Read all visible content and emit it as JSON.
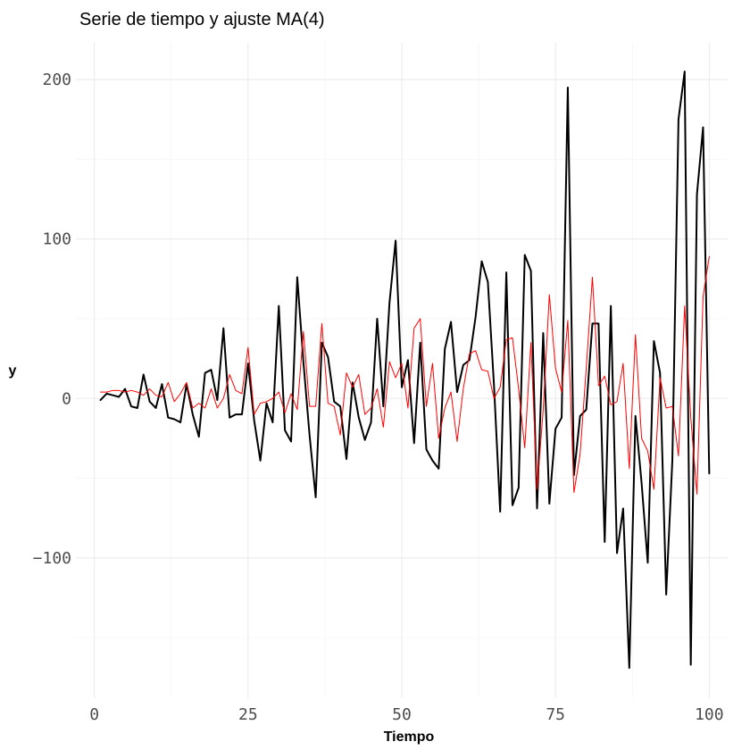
{
  "chart_data": {
    "type": "line",
    "title": "Serie de tiempo y ajuste MA(4)",
    "xlabel": "Tiempo",
    "ylabel": "y",
    "xlim": [
      -3,
      103
    ],
    "ylim": [
      -188,
      223
    ],
    "x_ticks": [
      0,
      25,
      50,
      75,
      100
    ],
    "y_ticks": [
      -100,
      0,
      100,
      200
    ],
    "x_tick_labels": [
      "0",
      "25",
      "50",
      "75",
      "100"
    ],
    "y_tick_labels": [
      "-100",
      "0",
      "100",
      "200"
    ],
    "grid": true,
    "legend": "none",
    "x": [
      1,
      2,
      3,
      4,
      5,
      6,
      7,
      8,
      9,
      10,
      11,
      12,
      13,
      14,
      15,
      16,
      17,
      18,
      19,
      20,
      21,
      22,
      23,
      24,
      25,
      26,
      27,
      28,
      29,
      30,
      31,
      32,
      33,
      34,
      35,
      36,
      37,
      38,
      39,
      40,
      41,
      42,
      43,
      44,
      45,
      46,
      47,
      48,
      49,
      50,
      51,
      52,
      53,
      54,
      55,
      56,
      57,
      58,
      59,
      60,
      61,
      62,
      63,
      64,
      65,
      66,
      67,
      68,
      69,
      70,
      71,
      72,
      73,
      74,
      75,
      76,
      77,
      78,
      79,
      80,
      81,
      82,
      83,
      84,
      85,
      86,
      87,
      88,
      89,
      90,
      91,
      92,
      93,
      94,
      95,
      96,
      97,
      98,
      99,
      100
    ],
    "series": [
      {
        "color": "#000000",
        "width": 2,
        "values": [
          -1,
          3,
          2,
          1,
          6,
          -5,
          -6,
          15,
          -2,
          -6,
          9,
          -12,
          -13,
          -15,
          9,
          -10,
          -24,
          16,
          18,
          -1,
          44,
          -12,
          -10,
          -10,
          22,
          -14,
          -39,
          -3,
          -15,
          58,
          -20,
          -27,
          76,
          23,
          -23,
          -62,
          35,
          26,
          -2,
          -5,
          -38,
          10,
          -12,
          -26,
          -15,
          50,
          -5,
          60,
          99,
          7,
          24,
          -28,
          35,
          -32,
          -39,
          -44,
          31,
          48,
          4,
          21,
          24,
          51,
          86,
          73,
          8,
          -71,
          79,
          -67,
          -56,
          90,
          80,
          -69,
          41,
          -66,
          -19,
          -12,
          195,
          -48,
          -11,
          -7,
          47,
          47,
          -90,
          58,
          -97,
          -69,
          -169,
          -11,
          -53,
          -103,
          36,
          16,
          -123,
          -39,
          175,
          205,
          -167,
          128,
          170,
          -47
        ]
      },
      {
        "color": "#ff0000",
        "width": 1,
        "values": [
          4,
          4,
          5,
          5,
          4,
          5,
          4,
          2,
          6,
          2,
          1,
          10,
          -2,
          3,
          10,
          -6,
          -3,
          -6,
          6,
          -6,
          0,
          15,
          5,
          3,
          32,
          -10,
          -3,
          -2,
          0,
          4,
          -9,
          3,
          -7,
          42,
          -5,
          -5,
          47,
          -3,
          -5,
          -23,
          16,
          7,
          15,
          -10,
          -6,
          6,
          -18,
          23,
          13,
          22,
          -6,
          44,
          50,
          -5,
          22,
          -25,
          -6,
          4,
          -27,
          6,
          28,
          30,
          18,
          17,
          0,
          7,
          37,
          38,
          6,
          -31,
          35,
          -57,
          -7,
          65,
          19,
          4,
          49,
          -59,
          -35,
          19,
          76,
          8,
          14,
          -4,
          -2,
          22,
          -44,
          40,
          -25,
          -33,
          -57,
          13,
          -6,
          -5,
          -36,
          58,
          -12,
          -60,
          64,
          89
        ]
      }
    ]
  }
}
